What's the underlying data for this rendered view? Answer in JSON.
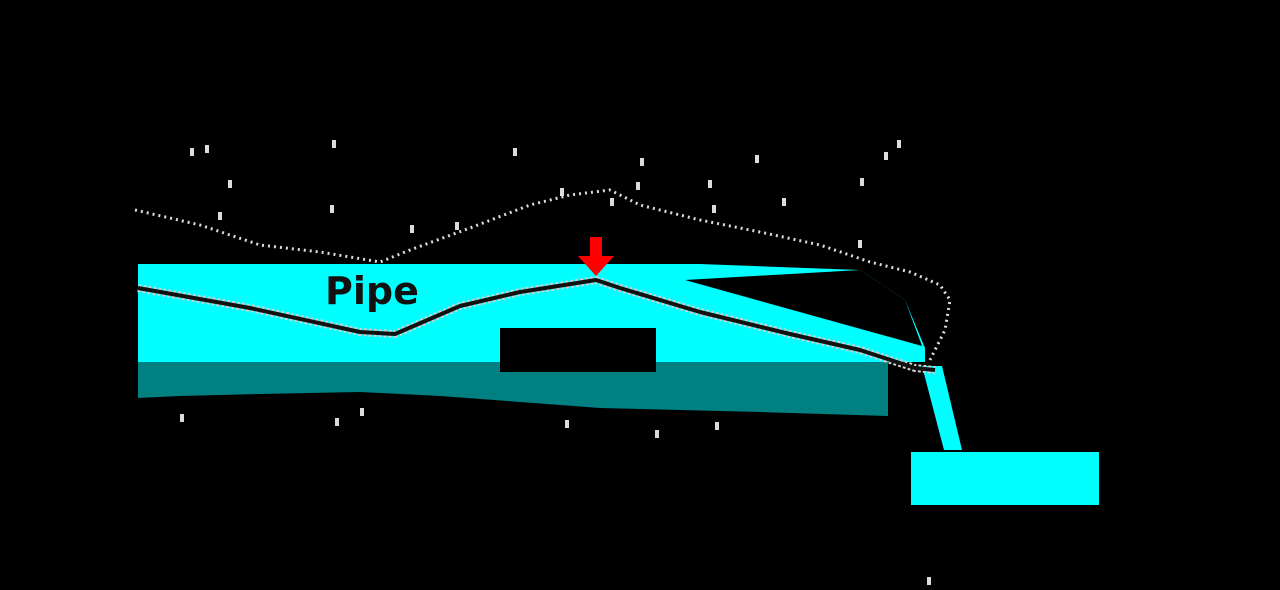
{
  "diagram": {
    "pipe_label": "Pipe",
    "colors": {
      "background": "#000000",
      "water": "#00ffff",
      "water_shadow": "#008080",
      "pipe_line": "#111111",
      "pipe_highlight": "#cfcfcf",
      "marker": "#ff0000",
      "speckle": "#dcdcdc"
    },
    "icons": {
      "marker": "down-arrow"
    }
  }
}
